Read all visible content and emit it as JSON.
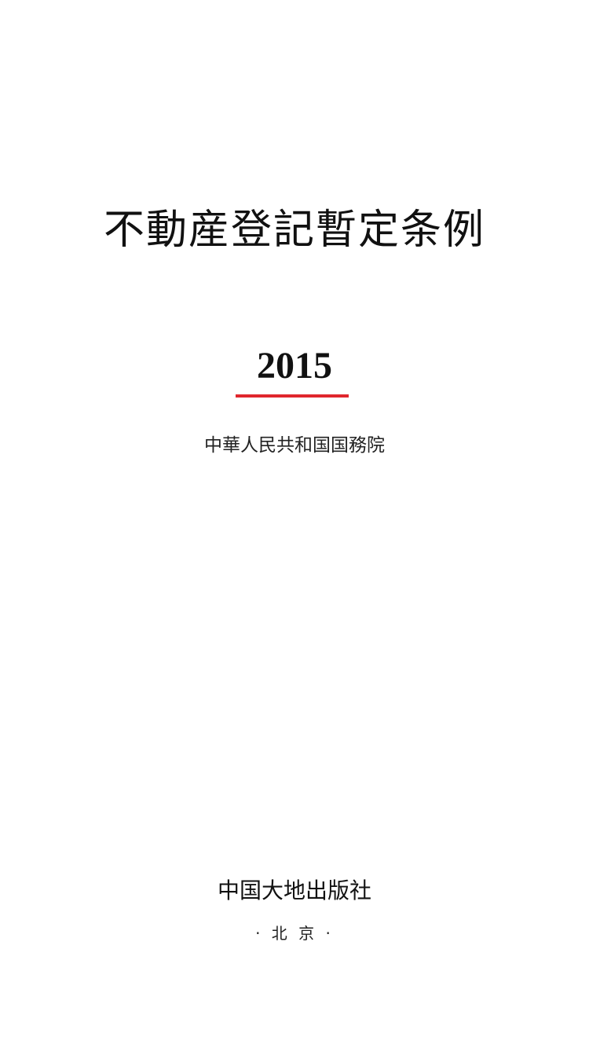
{
  "cover": {
    "title": "不動産登記暫定条例",
    "year": "2015",
    "issuer": "中華人民共和国国務院",
    "publisher": "中国大地出版社",
    "city": "· 北 京 ·"
  },
  "colors": {
    "accent_rule": "#e0262d",
    "text": "#111111",
    "background": "#ffffff"
  }
}
